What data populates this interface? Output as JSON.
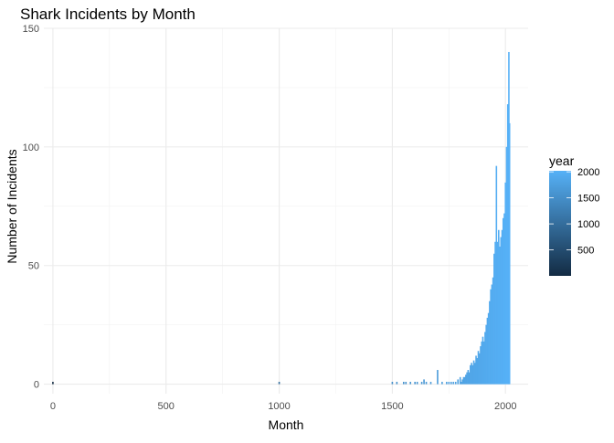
{
  "chart_data": {
    "type": "bar",
    "title": "Shark Incidents by Month",
    "xlabel": "Month",
    "ylabel": "Number of Incidents",
    "xlim": [
      -40,
      2100
    ],
    "ylim": [
      -4,
      150
    ],
    "x_ticks": [
      0,
      500,
      1000,
      1500,
      2000
    ],
    "y_ticks": [
      0,
      50,
      100,
      150
    ],
    "grid": true,
    "legend": {
      "title": "year",
      "type": "colorbar",
      "position": "right",
      "range": [
        1,
        2020
      ],
      "ticks": [
        500,
        1000,
        1500,
        2000
      ],
      "color_low": "#132B43",
      "color_high": "#56B1F7"
    },
    "series": [
      {
        "x": [
          0,
          1000,
          1500,
          1520,
          1550,
          1560,
          1580,
          1600,
          1610,
          1630,
          1640,
          1650,
          1670,
          1700,
          1720,
          1740,
          1750,
          1760,
          1770,
          1780,
          1790,
          1800,
          1805,
          1810,
          1815,
          1820,
          1825,
          1830,
          1835,
          1840,
          1845,
          1850,
          1855,
          1860,
          1865,
          1870,
          1875,
          1880,
          1885,
          1890,
          1895,
          1900,
          1905,
          1910,
          1915,
          1920,
          1925,
          1930,
          1935,
          1940,
          1945,
          1950,
          1955,
          1960,
          1965,
          1970,
          1975,
          1980,
          1985,
          1990,
          1995,
          2000,
          2005,
          2010,
          2015,
          2018
        ],
        "values": [
          1,
          1,
          1,
          1,
          1,
          1,
          1,
          1,
          1,
          1,
          2,
          1,
          1,
          6,
          1,
          1,
          1,
          1,
          1,
          1,
          2,
          3,
          1,
          2,
          3,
          3,
          4,
          5,
          6,
          5,
          8,
          9,
          8,
          10,
          9,
          12,
          11,
          14,
          13,
          16,
          18,
          20,
          18,
          22,
          25,
          28,
          30,
          35,
          40,
          42,
          45,
          55,
          60,
          92,
          60,
          65,
          58,
          62,
          65,
          70,
          72,
          85,
          100,
          118,
          140,
          110
        ]
      }
    ]
  }
}
